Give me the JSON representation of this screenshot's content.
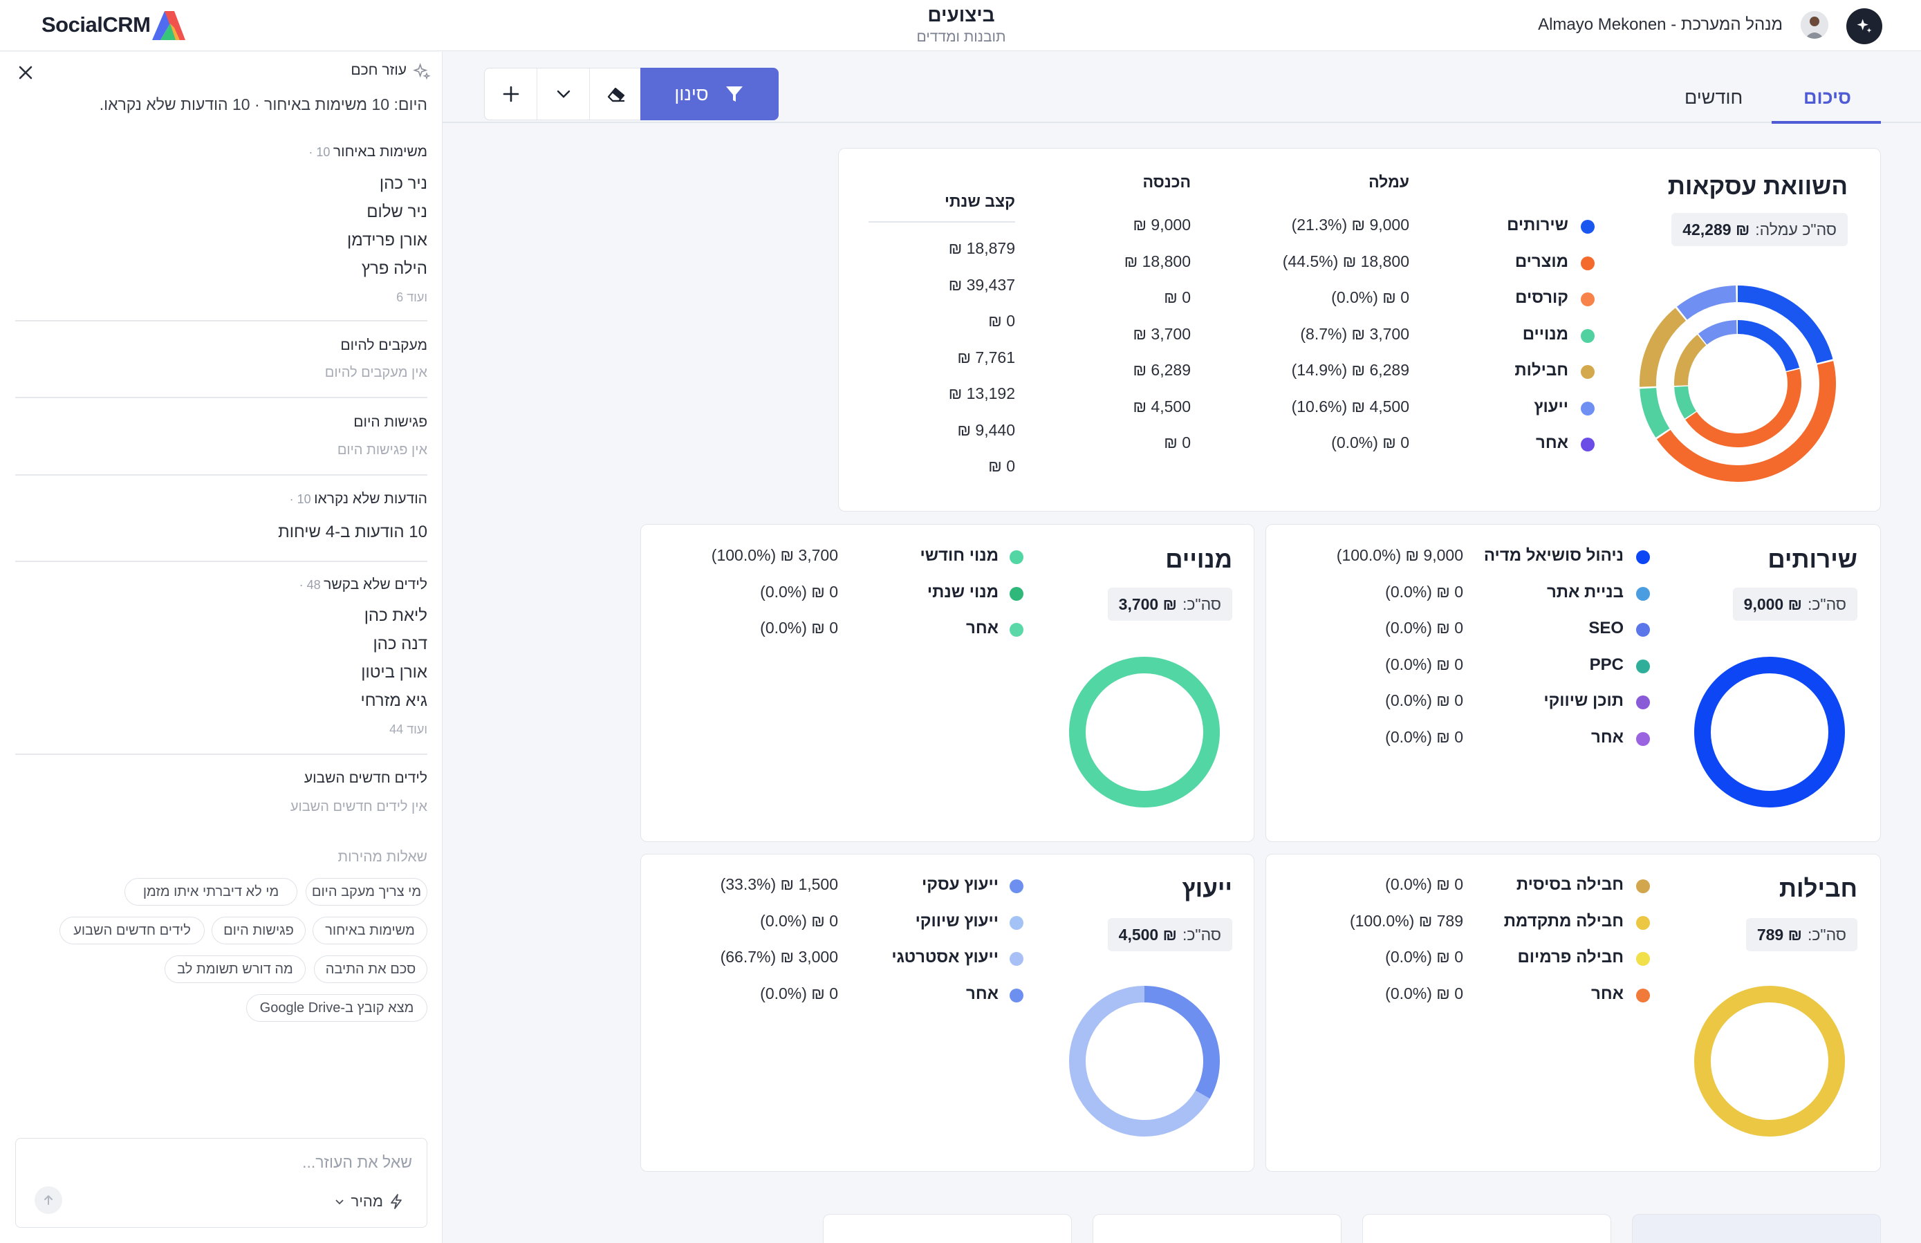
{
  "header": {
    "brand": "SocialCRM",
    "page_title": "ביצועים",
    "page_subtitle": "תובנות ומדדים",
    "user_label": "Almayo Mekonen - מנהל המערכת"
  },
  "assistant": {
    "title": "עוזר חכם",
    "summary": "היום: 10 משימות באיחור · 10 הודעות שלא נקראו.",
    "overdue": {
      "title": "משימות באיחור",
      "count": "10 ·",
      "items": [
        "ניר כהן",
        "ניר שלום",
        "אורן פרידמן",
        "הילה פרץ"
      ],
      "more": "ועוד 6"
    },
    "followups": {
      "title": "מעקבים להיום",
      "empty": "אין מעקבים להיום"
    },
    "meetings": {
      "title": "פגישות היום",
      "empty": "אין פגישות היום"
    },
    "unread": {
      "title": "הודעות שלא נקראו",
      "count": "10 ·",
      "text": "10 הודעות ב-4 שיחות"
    },
    "leads": {
      "title": "לידים שלא בקשר",
      "count": "48 ·",
      "items": [
        "ליאת כהן",
        "דנה כהן",
        "אורן ביטון",
        "גיא מזרחי"
      ],
      "more": "ועוד 44"
    },
    "new_leads": {
      "title": "לידים חדשים השבוע",
      "empty": "אין לידים חדשים השבוע"
    },
    "quick_title": "שאלות מהירות",
    "chips": [
      "מי צריך מעקב היום",
      "מי לא דיברתי איתו מזמן",
      "משימות באיחור",
      "פגישות היום",
      "לידים חדשים השבוע",
      "סכם את התיבה",
      "מה דורש תשומת לב",
      "מצא קובץ ב-Google Drive"
    ],
    "input_placeholder": "שאל את העוזר...",
    "mode_label": "מהיר"
  },
  "toolbar": {
    "filter_label": "סינון"
  },
  "tabs": {
    "summary": "סיכום",
    "monthly": "חודשים"
  },
  "deals": {
    "title": "השוואת עסקאות",
    "total_label": "סה\"כ עמלה:",
    "total_value": "₪ 42,289",
    "col_commission": "עמלה",
    "col_income": "הכנסה",
    "col_annual": "קצב שנתי",
    "rows": [
      {
        "name": "שירותים",
        "color": "#1a56f0",
        "commission": "(21.3%) ₪ 9,000",
        "income": "₪ 9,000",
        "annual": "₪ 18,879"
      },
      {
        "name": "מוצרים",
        "color": "#f36a2c",
        "commission": "(44.5%) ₪ 18,800",
        "income": "₪ 18,800",
        "annual": "₪ 39,437"
      },
      {
        "name": "קורסים",
        "color": "#f7834a",
        "commission": "(0.0%) ₪ 0",
        "income": "₪ 0",
        "annual": "₪ 0"
      },
      {
        "name": "מנויים",
        "color": "#52d1a0",
        "commission": "(8.7%) ₪ 3,700",
        "income": "₪ 3,700",
        "annual": "₪ 7,761"
      },
      {
        "name": "חבילות",
        "color": "#d4a94d",
        "commission": "(14.9%) ₪ 6,289",
        "income": "₪ 6,289",
        "annual": "₪ 13,192"
      },
      {
        "name": "ייעוץ",
        "color": "#6f8ff2",
        "commission": "(10.6%) ₪ 4,500",
        "income": "₪ 4,500",
        "annual": "₪ 9,440"
      },
      {
        "name": "אחר",
        "color": "#6b4ce6",
        "commission": "(0.0%) ₪ 0",
        "income": "₪ 0",
        "annual": "₪ 0"
      }
    ]
  },
  "services": {
    "title": "שירותים",
    "total_label": "סה\"כ:",
    "total_value": "₪ 9,000",
    "ring_color": "#0d47f5",
    "items": [
      {
        "name": "ניהול סושיאל מדיה",
        "color": "#0d47f5",
        "value": "(100.0%) ₪ 9,000"
      },
      {
        "name": "בניית אתר",
        "color": "#4a9de0",
        "value": "(0.0%) ₪ 0"
      },
      {
        "name": "SEO",
        "color": "#5b76e8",
        "value": "(0.0%) ₪ 0"
      },
      {
        "name": "PPC",
        "color": "#2fae9a",
        "value": "(0.0%) ₪ 0"
      },
      {
        "name": "תוכן שיווקי",
        "color": "#8a5bd6",
        "value": "(0.0%) ₪ 0"
      },
      {
        "name": "אחר",
        "color": "#9a63e0",
        "value": "(0.0%) ₪ 0"
      }
    ]
  },
  "subscriptions": {
    "title": "מנויים",
    "total_label": "סה\"כ:",
    "total_value": "₪ 3,700",
    "ring_color": "#52d6a4",
    "items": [
      {
        "name": "מנוי חודשי",
        "color": "#52d6a4",
        "value": "(100.0%) ₪ 3,700"
      },
      {
        "name": "מנוי שנתי",
        "color": "#2fb87a",
        "value": "(0.0%) ₪ 0"
      },
      {
        "name": "אחר",
        "color": "#5ad8a8",
        "value": "(0.0%) ₪ 0"
      }
    ]
  },
  "packages": {
    "title": "חבילות",
    "total_label": "סה\"כ:",
    "total_value": "₪ 789",
    "ring_color": "#ebc743",
    "items": [
      {
        "name": "חבילה בסיסית",
        "color": "#d1a64d",
        "value": "(0.0%) ₪ 0"
      },
      {
        "name": "חבילה מתקדמת",
        "color": "#ebc743",
        "value": "(100.0%) ₪ 789"
      },
      {
        "name": "חבילה פרמיום",
        "color": "#f1e04a",
        "value": "(0.0%) ₪ 0"
      },
      {
        "name": "אחר",
        "color": "#f07a3a",
        "value": "(0.0%) ₪ 0"
      }
    ]
  },
  "consulting": {
    "title": "ייעוץ",
    "total_label": "סה\"כ:",
    "total_value": "₪ 4,500",
    "items": [
      {
        "name": "ייעוץ עסקי",
        "color": "#6c8ff0",
        "value": "(33.3%) ₪ 1,500"
      },
      {
        "name": "ייעוץ שיווקי",
        "color": "#a3c2f5",
        "value": "(0.0%) ₪ 0"
      },
      {
        "name": "ייעוץ אסטרטגי",
        "color": "#a9c0f6",
        "value": "(66.7%) ₪ 3,000"
      },
      {
        "name": "אחר",
        "color": "#6c8ff0",
        "value": "(0.0%) ₪ 0"
      }
    ],
    "segments": [
      {
        "color": "#6c8ff0",
        "fraction": 0.333
      },
      {
        "color": "#a9c0f6",
        "fraction": 0.667
      }
    ]
  },
  "chart_data": [
    {
      "type": "pie",
      "title": "השוואת עסקאות",
      "categories": [
        "שירותים",
        "מוצרים",
        "קורסים",
        "מנויים",
        "חבילות",
        "ייעוץ",
        "אחר"
      ],
      "series": [
        {
          "name": "עמלה",
          "values": [
            9000,
            18800,
            0,
            3700,
            6289,
            4500,
            0
          ]
        },
        {
          "name": "הכנסה",
          "values": [
            9000,
            18800,
            0,
            3700,
            6289,
            4500,
            0
          ]
        }
      ]
    },
    {
      "type": "pie",
      "title": "שירותים",
      "categories": [
        "ניהול סושיאל מדיה",
        "בניית אתר",
        "SEO",
        "PPC",
        "תוכן שיווקי",
        "אחר"
      ],
      "values": [
        9000,
        0,
        0,
        0,
        0,
        0
      ]
    },
    {
      "type": "pie",
      "title": "מנויים",
      "categories": [
        "מנוי חודשי",
        "מנוי שנתי",
        "אחר"
      ],
      "values": [
        3700,
        0,
        0
      ]
    },
    {
      "type": "pie",
      "title": "חבילות",
      "categories": [
        "חבילה בסיסית",
        "חבילה מתקדמת",
        "חבילה פרמיום",
        "אחר"
      ],
      "values": [
        0,
        789,
        0,
        0
      ]
    },
    {
      "type": "pie",
      "title": "ייעוץ",
      "categories": [
        "ייעוץ עסקי",
        "ייעוץ שיווקי",
        "ייעוץ אסטרטגי",
        "אחר"
      ],
      "values": [
        1500,
        0,
        3000,
        0
      ]
    }
  ]
}
